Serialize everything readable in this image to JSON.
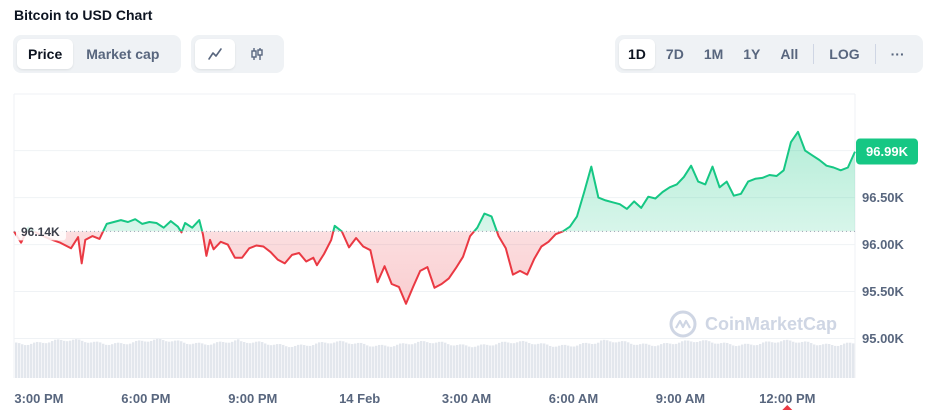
{
  "title": "Bitcoin to USD Chart",
  "metric_tabs": [
    {
      "label": "Price",
      "active": true
    },
    {
      "label": "Market cap",
      "active": false
    }
  ],
  "type_tabs": [
    {
      "icon": "line-chart-icon",
      "active": true
    },
    {
      "icon": "candlestick-icon",
      "active": false
    }
  ],
  "range_tabs": [
    {
      "label": "1D",
      "active": true
    },
    {
      "label": "7D",
      "active": false
    },
    {
      "label": "1M",
      "active": false
    },
    {
      "label": "1Y",
      "active": false
    },
    {
      "label": "All",
      "active": false
    }
  ],
  "log_label": "LOG",
  "more_label": "···",
  "watermark": "CoinMarketCap",
  "colors": {
    "up": "#16c784",
    "down": "#ea3943",
    "volume": "#e3e7ed",
    "grid": "#eff2f5",
    "axis_text": "#58667e"
  },
  "chart_data": {
    "type": "line",
    "title": "Bitcoin to USD Chart",
    "xlabel": "",
    "ylabel": "",
    "x_ticks": [
      "3:00 PM",
      "6:00 PM",
      "9:00 PM",
      "14 Feb",
      "3:00 AM",
      "6:00 AM",
      "9:00 AM",
      "12:00 PM"
    ],
    "x_tick_hours": [
      0,
      3,
      6,
      9,
      12,
      15,
      18,
      21
    ],
    "y_ticks": [
      "95.00K",
      "95.50K",
      "96.00K",
      "96.50K"
    ],
    "y_tick_values": [
      95000,
      95500,
      96000,
      96500
    ],
    "ylim": [
      94580,
      97560
    ],
    "xlim": [
      -0.7,
      22.9
    ],
    "reference_price": 96140,
    "reference_label": "96.14K",
    "current_price": 96990,
    "current_label": "96.99K",
    "grid": true,
    "series": [
      {
        "values": [
          [
            -0.7,
            96140
          ],
          [
            -0.5,
            96020
          ],
          [
            -0.3,
            96180
          ],
          [
            0.0,
            96110
          ],
          [
            0.3,
            96060
          ],
          [
            0.6,
            96020
          ],
          [
            0.9,
            95960
          ],
          [
            1.1,
            96080
          ],
          [
            1.2,
            95800
          ],
          [
            1.3,
            96050
          ],
          [
            1.5,
            96090
          ],
          [
            1.7,
            96060
          ],
          [
            1.9,
            96220
          ],
          [
            2.1,
            96240
          ],
          [
            2.3,
            96260
          ],
          [
            2.5,
            96240
          ],
          [
            2.7,
            96270
          ],
          [
            2.9,
            96220
          ],
          [
            3.1,
            96240
          ],
          [
            3.3,
            96230
          ],
          [
            3.5,
            96180
          ],
          [
            3.7,
            96250
          ],
          [
            3.9,
            96190
          ],
          [
            4.0,
            96130
          ],
          [
            4.1,
            96230
          ],
          [
            4.3,
            96180
          ],
          [
            4.5,
            96260
          ],
          [
            4.6,
            96110
          ],
          [
            4.7,
            95880
          ],
          [
            4.8,
            96050
          ],
          [
            4.9,
            95950
          ],
          [
            5.1,
            96030
          ],
          [
            5.3,
            96000
          ],
          [
            5.5,
            95860
          ],
          [
            5.7,
            95860
          ],
          [
            5.9,
            95960
          ],
          [
            6.1,
            95990
          ],
          [
            6.3,
            95980
          ],
          [
            6.5,
            95920
          ],
          [
            6.7,
            95840
          ],
          [
            6.9,
            95800
          ],
          [
            7.1,
            95890
          ],
          [
            7.3,
            95910
          ],
          [
            7.5,
            95820
          ],
          [
            7.7,
            95860
          ],
          [
            7.8,
            95780
          ],
          [
            8.0,
            95900
          ],
          [
            8.2,
            96050
          ],
          [
            8.3,
            96200
          ],
          [
            8.5,
            96140
          ],
          [
            8.7,
            95970
          ],
          [
            8.9,
            96070
          ],
          [
            9.1,
            95980
          ],
          [
            9.3,
            95940
          ],
          [
            9.5,
            95600
          ],
          [
            9.7,
            95770
          ],
          [
            9.9,
            95580
          ],
          [
            10.1,
            95550
          ],
          [
            10.3,
            95370
          ],
          [
            10.5,
            95550
          ],
          [
            10.7,
            95720
          ],
          [
            10.9,
            95760
          ],
          [
            11.1,
            95540
          ],
          [
            11.3,
            95580
          ],
          [
            11.5,
            95640
          ],
          [
            11.7,
            95750
          ],
          [
            11.9,
            95870
          ],
          [
            12.1,
            96090
          ],
          [
            12.3,
            96180
          ],
          [
            12.5,
            96330
          ],
          [
            12.7,
            96300
          ],
          [
            12.9,
            96090
          ],
          [
            13.1,
            95960
          ],
          [
            13.3,
            95680
          ],
          [
            13.5,
            95720
          ],
          [
            13.7,
            95680
          ],
          [
            13.9,
            95850
          ],
          [
            14.1,
            95980
          ],
          [
            14.3,
            96030
          ],
          [
            14.5,
            96110
          ],
          [
            14.7,
            96140
          ],
          [
            14.9,
            96190
          ],
          [
            15.1,
            96300
          ],
          [
            15.3,
            96560
          ],
          [
            15.5,
            96830
          ],
          [
            15.7,
            96500
          ],
          [
            15.9,
            96470
          ],
          [
            16.1,
            96450
          ],
          [
            16.3,
            96430
          ],
          [
            16.5,
            96380
          ],
          [
            16.7,
            96460
          ],
          [
            16.9,
            96390
          ],
          [
            17.1,
            96510
          ],
          [
            17.3,
            96490
          ],
          [
            17.5,
            96560
          ],
          [
            17.7,
            96610
          ],
          [
            17.9,
            96640
          ],
          [
            18.1,
            96720
          ],
          [
            18.3,
            96840
          ],
          [
            18.5,
            96670
          ],
          [
            18.7,
            96640
          ],
          [
            18.9,
            96830
          ],
          [
            19.1,
            96610
          ],
          [
            19.3,
            96670
          ],
          [
            19.5,
            96520
          ],
          [
            19.7,
            96540
          ],
          [
            19.9,
            96670
          ],
          [
            20.1,
            96700
          ],
          [
            20.3,
            96710
          ],
          [
            20.5,
            96740
          ],
          [
            20.7,
            96730
          ],
          [
            20.9,
            96790
          ],
          [
            21.1,
            97090
          ],
          [
            21.3,
            97200
          ],
          [
            21.5,
            97000
          ],
          [
            21.7,
            96950
          ],
          [
            21.9,
            96900
          ],
          [
            22.1,
            96840
          ],
          [
            22.3,
            96820
          ],
          [
            22.5,
            96790
          ],
          [
            22.7,
            96820
          ],
          [
            22.9,
            96990
          ]
        ]
      }
    ]
  }
}
